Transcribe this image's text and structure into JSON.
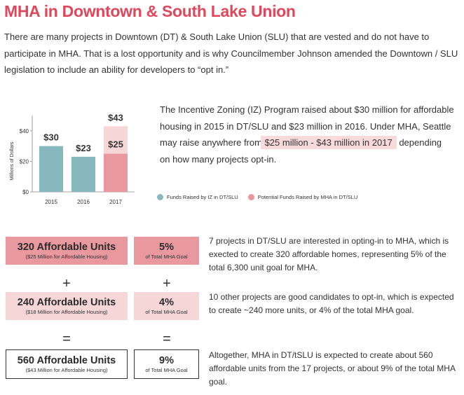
{
  "title": "MHA in Downtown & South Lake Union",
  "intro": "There are many projects in Downtown (DT) & South Lake Union (SLU) that are vested and do not have to participate in MHA.  That is a lost opportunity and is why Councilmember Johnson amended the Downtown / SLU legislation to include an ability for developers to “opt in.”",
  "chart_data": {
    "type": "bar",
    "categories": [
      "2015",
      "2016",
      "2017"
    ],
    "series": [
      {
        "name": "Funds Raised by IZ in DT/SLU",
        "values": [
          30,
          23,
          null
        ],
        "color": "#87b8bf"
      },
      {
        "name": "Potential Funds Raised by MHA in DT/SLU",
        "values": [
          null,
          null,
          25
        ],
        "color": "#e9989e"
      },
      {
        "name": "",
        "values": [
          null,
          null,
          43
        ],
        "color": "#f7d6d8"
      }
    ],
    "data_labels": [
      "$30",
      "$23",
      "$25",
      "$43"
    ],
    "ylabel": "Millions of Dollars",
    "yticks": [
      "$0",
      "$20",
      "$40"
    ],
    "ylim": [
      0,
      50
    ],
    "legend_position": "bottom"
  },
  "iz": {
    "text_before": "The Incentive Zoning (IZ) Program raised about $30 million for affordable housing in 2015 in DT/SLU and $23 million in 2016. Under MHA, Seattle may raise anywhere from",
    "highlight": "$25 million  - $43 million in 2017",
    "text_after": "depending on how many projects opt-in."
  },
  "legend": {
    "iz": "Funds Raised by IZ in DT/SLU",
    "mha": "Potential Funds Raised by MHA in DT/SLU",
    "iz_color": "#87b8bf",
    "mha_color": "#e9989e"
  },
  "rows": [
    {
      "units": "320 Affordable Units",
      "units_sub": "($25 Million for Affordable Housing)",
      "pct": "5%",
      "pct_sub": "of Total MHA Goal",
      "desc": "7 projects in DT/SLU are interested in opting-in to MHA, which is exected to create 320 affordable homes, representing 5% of the total 6,300 unit goal for MHA.",
      "color": "#e9989e"
    },
    {
      "units": "240 Affordable Units",
      "units_sub": "($18 Million for Affordable Housing)",
      "pct": "4%",
      "pct_sub": "of Total MHA Goal",
      "desc": "10 other projects are good candidates to opt-in, which is expected to create ~240 more units, or 4% of the total MHA goal.",
      "color": "#f7d6d8"
    },
    {
      "units": "560 Affordable Units",
      "units_sub": "($43 Million for Affordable Housing)",
      "pct": "9%",
      "pct_sub": "of Total MHA Goal",
      "desc": "Altogether, MHA in DT/tSLU is expected to create about 560 affordable units from the 17 projects, or about 9% of the total MHA goal.",
      "color": "#ffffff"
    }
  ],
  "ops": {
    "plus": "+",
    "equals": "="
  }
}
